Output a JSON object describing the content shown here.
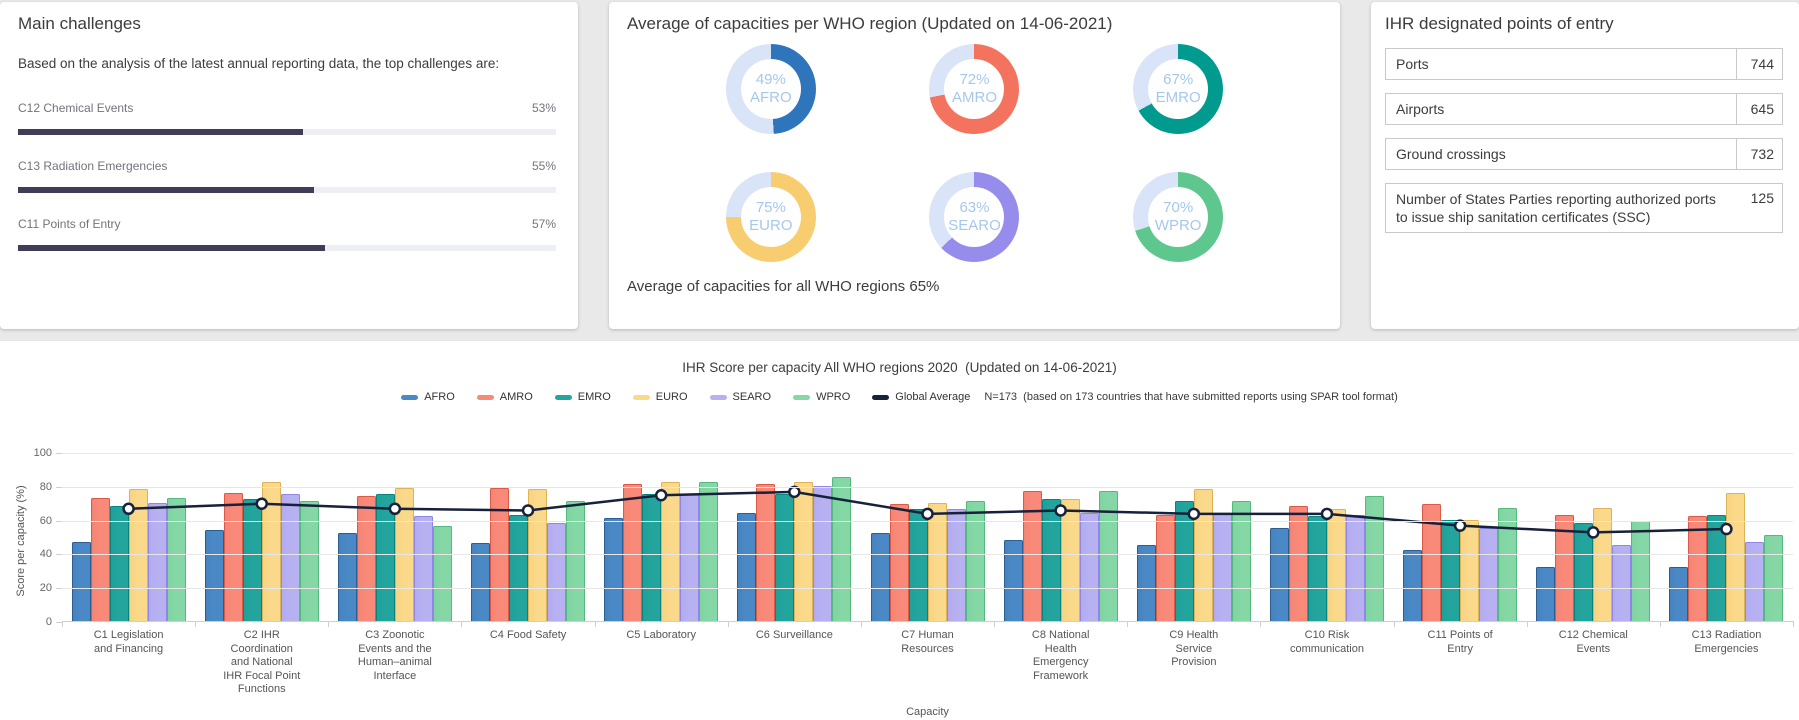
{
  "colors": {
    "challenge_bar": "#3f3d58",
    "donut_track": "#d9e4f8",
    "donut_label": "#a5c8ea",
    "global_average": "#17213c",
    "donut": {
      "AFRO": "#2e75bb",
      "AMRO": "#f4735f",
      "EMRO": "#009a8e",
      "EURO": "#f8cd70",
      "SEARO": "#958cec",
      "WPRO": "#5ec78d"
    },
    "bar": {
      "AFRO": "#4a89c6",
      "AMRO": "#f98a7a",
      "EMRO": "#23a59e",
      "EURO": "#fbd98a",
      "SEARO": "#b7b1f2",
      "WPRO": "#85d8a6"
    },
    "bar_border": {
      "AFRO": "#2a5e93",
      "AMRO": "#d95b47",
      "EMRO": "#07847f",
      "EURO": "#e0b257",
      "SEARO": "#8f86e8",
      "WPRO": "#54b87f"
    }
  },
  "challenges": {
    "title": "Main challenges",
    "subtitle": "Based on the analysis of the latest annual reporting data, the top challenges are:"
  },
  "donuts": {
    "title": "Average of capacities per WHO region (Updated on 14-06-2021)",
    "footer": "Average of capacities for all WHO regions 65%"
  },
  "points_of_entry": {
    "title": "IHR designated points of entry",
    "rows": [
      {
        "label": "Ports",
        "value": "744"
      },
      {
        "label": "Airports",
        "value": "645"
      },
      {
        "label": "Ground crossings",
        "value": "732"
      },
      {
        "label": "Number of States Parties reporting authorized ports to issue ship sanitation certificates (SSC)",
        "value": "125"
      }
    ]
  },
  "chart_data": [
    {
      "id": "main_challenges",
      "type": "bar",
      "orientation": "horizontal",
      "categories": [
        "C12 Chemical Events",
        "C13 Radiation Emergencies",
        "C11 Points of Entry"
      ],
      "values": [
        53,
        55,
        57
      ],
      "unit": "%",
      "xlim": [
        0,
        100
      ]
    },
    {
      "id": "region_capacity_donuts",
      "type": "pie",
      "unit": "%",
      "items": [
        {
          "label": "AFRO",
          "value": 49
        },
        {
          "label": "AMRO",
          "value": 72
        },
        {
          "label": "EMRO",
          "value": 67
        },
        {
          "label": "EURO",
          "value": 75
        },
        {
          "label": "SEARO",
          "value": 63
        },
        {
          "label": "WPRO",
          "value": 70
        }
      ]
    },
    {
      "id": "ihr_score_per_capacity",
      "type": "bar+line",
      "title": "IHR Score per capacity All WHO regions 2020  (Updated on 14-06-2021)",
      "xlabel": "Capacity",
      "ylabel": "Score per capacity (%)",
      "ylim": [
        0,
        100
      ],
      "yticks": [
        0,
        20,
        40,
        60,
        80,
        100
      ],
      "legend_note": "N=173  (based on 173 countries that have submitted reports using SPAR tool format)",
      "categories": [
        "C1 Legislation\nand Financing",
        "C2 IHR\nCoordination\nand National\nIHR Focal Point\nFunctions",
        "C3 Zoonotic\nEvents and the\nHuman–animal\nInterface",
        "C4 Food Safety",
        "C5 Laboratory",
        "C6 Surveillance",
        "C7 Human\nResources",
        "C8 National\nHealth\nEmergency\nFramework",
        "C9 Health\nService\nProvision",
        "C10 Risk\ncommunication",
        "C11 Points of\nEntry",
        "C12 Chemical\nEvents",
        "C13 Radiation\nEmergencies"
      ],
      "series": [
        {
          "name": "AFRO",
          "type": "bar",
          "values": [
            47,
            54,
            52,
            46,
            61,
            64,
            52,
            48,
            45,
            55,
            42,
            32,
            32
          ]
        },
        {
          "name": "AMRO",
          "type": "bar",
          "values": [
            73,
            76,
            74,
            79,
            81,
            81,
            69,
            77,
            63,
            68,
            69,
            63,
            62
          ]
        },
        {
          "name": "EMRO",
          "type": "bar",
          "values": [
            68,
            72,
            75,
            63,
            75,
            75,
            66,
            72,
            71,
            62,
            60,
            58,
            63
          ]
        },
        {
          "name": "EURO",
          "type": "bar",
          "values": [
            78,
            82,
            79,
            78,
            82,
            82,
            70,
            72,
            78,
            66,
            60,
            67,
            76
          ]
        },
        {
          "name": "SEARO",
          "type": "bar",
          "values": [
            70,
            75,
            62,
            58,
            75,
            80,
            66,
            64,
            64,
            63,
            55,
            45,
            47
          ]
        },
        {
          "name": "WPRO",
          "type": "bar",
          "values": [
            73,
            71,
            56,
            71,
            82,
            85,
            71,
            77,
            71,
            74,
            67,
            59,
            51
          ]
        },
        {
          "name": "Global Average",
          "type": "line",
          "values": [
            67,
            70,
            67,
            66,
            75,
            77,
            64,
            66,
            64,
            64,
            57,
            53,
            55
          ]
        }
      ]
    }
  ]
}
